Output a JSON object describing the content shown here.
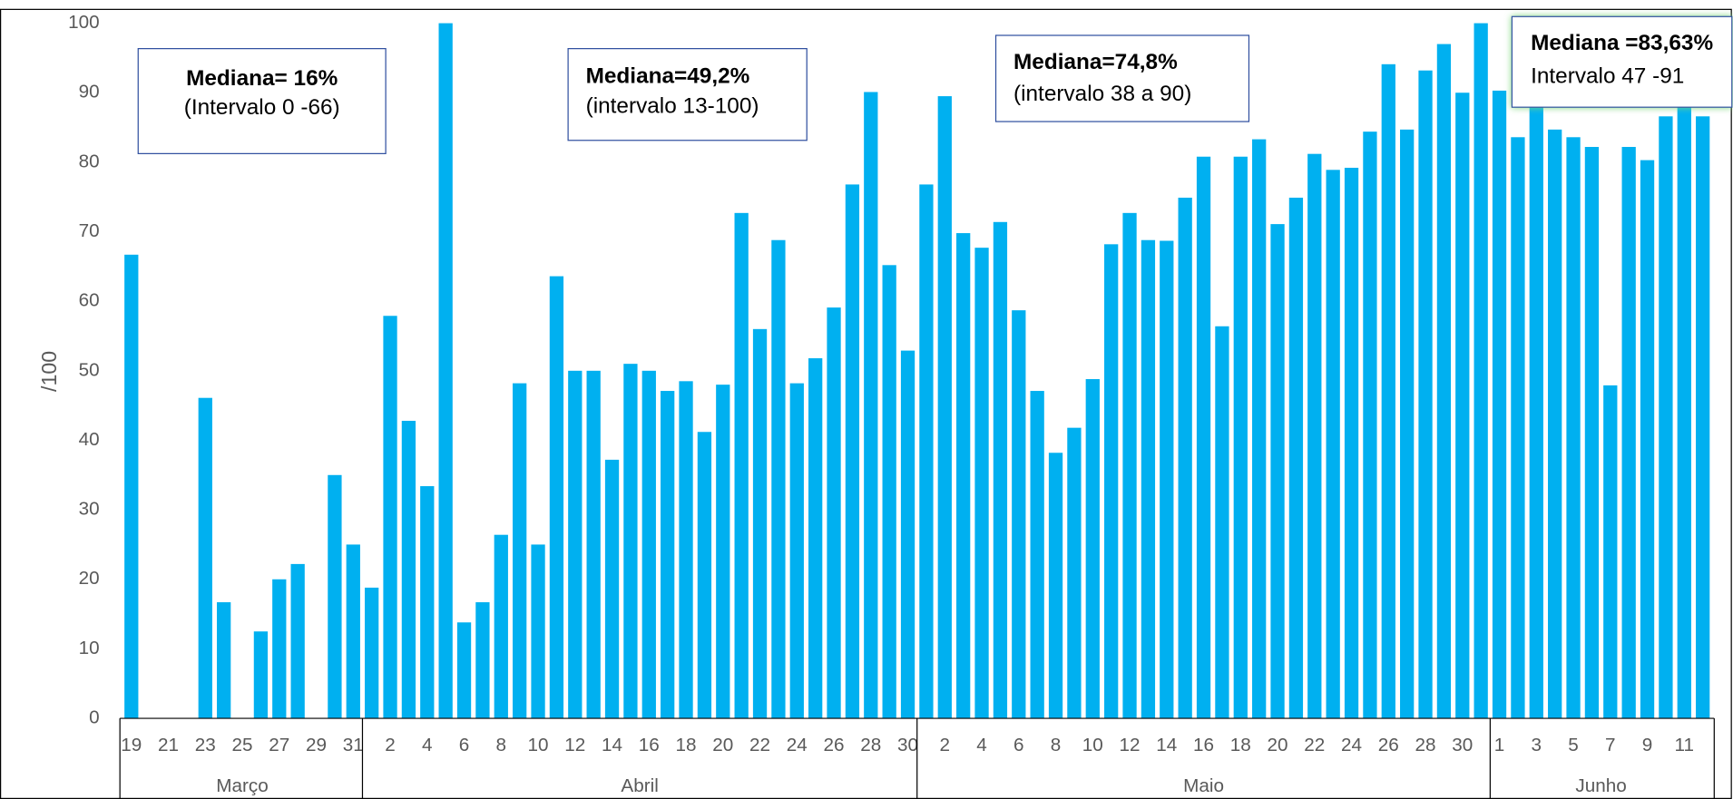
{
  "chart_data": {
    "type": "bar",
    "y_label": "/100",
    "color": "#00b0f0",
    "categories": [
      "19",
      null,
      "21",
      null,
      "23",
      null,
      "25",
      null,
      "27",
      null,
      "29",
      null,
      "31",
      null,
      "2",
      null,
      "4",
      null,
      "6",
      null,
      "8",
      null,
      "10",
      null,
      "12",
      null,
      "14",
      null,
      "16",
      null,
      "18",
      null,
      "20",
      null,
      "22",
      null,
      "24",
      null,
      "26",
      null,
      "28",
      null,
      "30",
      null,
      "2",
      null,
      "4",
      null,
      "6",
      null,
      "8",
      null,
      "10",
      null,
      "12",
      null,
      "14",
      null,
      "16",
      null,
      "18",
      null,
      "20",
      null,
      "22",
      null,
      "24",
      null,
      "26",
      null,
      "28",
      null,
      "30",
      null,
      "1",
      null,
      "3",
      null,
      "5",
      null,
      "7",
      null,
      "9",
      null,
      "11",
      null
    ],
    "values": [
      66.7,
      null,
      null,
      null,
      46.1,
      16.7,
      null,
      12.5,
      20,
      22.2,
      null,
      35,
      25,
      18.8,
      57.9,
      42.8,
      33.4,
      100,
      13.8,
      16.7,
      26.4,
      48.2,
      25,
      63.6,
      50,
      50,
      37.2,
      51,
      50,
      47.1,
      48.5,
      41.2,
      48,
      72.7,
      56,
      68.8,
      48.2,
      51.8,
      59.1,
      76.8,
      90.1,
      65.2,
      52.9,
      76.8,
      89.5,
      69.8,
      67.7,
      71.4,
      58.7,
      47.1,
      38.2,
      41.8,
      48.8,
      68.2,
      72.7,
      68.8,
      68.7,
      74.9,
      80.8,
      56.4,
      80.8,
      83.3,
      71.1,
      74.9,
      81.2,
      78.9,
      79.2,
      84.4,
      94.1,
      84.7,
      93.2,
      97,
      90,
      100,
      90.3,
      83.6,
      89.2,
      84.7,
      83.6,
      82.2,
      47.9,
      82.2,
      80.3,
      86.6,
      91.9,
      86.6
    ],
    "groups": [
      "Março",
      "Abril",
      "Maio",
      "Junho"
    ],
    "ylim": [
      0,
      100
    ],
    "yticks": [
      0,
      10,
      20,
      30,
      40,
      50,
      60,
      70,
      80,
      90,
      100
    ],
    "grid": false,
    "annotations": [
      {
        "title": "Mediana= 16%",
        "text": "(Intervalo  0 -66)"
      },
      {
        "title": "Mediana=49,2%",
        "text": "(intervalo 13-100)"
      },
      {
        "title": "Mediana=74,8%",
        "text": "(intervalo 38 a 90)"
      },
      {
        "title": "Mediana =83,63%",
        "text": "Intervalo 47 -91"
      }
    ]
  }
}
